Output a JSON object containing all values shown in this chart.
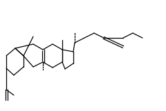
{
  "background_color": "#ffffff",
  "line_color": "#000000",
  "lw": 0.9,
  "figsize": [
    2.4,
    1.61
  ],
  "dpi": 100
}
